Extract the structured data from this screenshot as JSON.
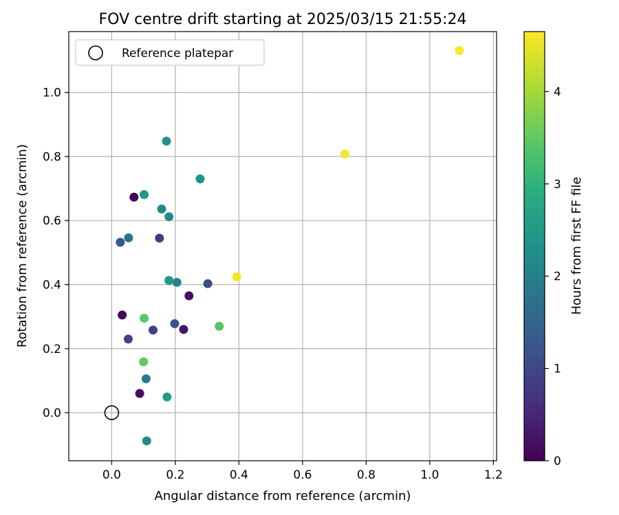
{
  "chart_data": {
    "type": "scatter",
    "title": "FOV centre drift starting at 2025/03/15 21:55:24",
    "xlabel": "Angular distance from reference (arcmin)",
    "ylabel": "Rotation from reference (arcmin)",
    "xlim": [
      -0.135,
      1.21
    ],
    "ylim": [
      -0.15,
      1.19
    ],
    "x_ticks": [
      "0.0",
      "0.2",
      "0.4",
      "0.6",
      "0.8",
      "1.0",
      "1.2"
    ],
    "y_ticks": [
      "0.0",
      "0.2",
      "0.4",
      "0.6",
      "0.8",
      "1.0"
    ],
    "grid": true,
    "legend": {
      "placement": "top-left",
      "entries": [
        "Reference platepar"
      ]
    },
    "reference_point": {
      "x": 0.0,
      "y": 0.0
    },
    "colorbar": {
      "label": "Hours from first FF file",
      "range": [
        0,
        4.65
      ],
      "ticks": [
        "0",
        "1",
        "2",
        "3",
        "4"
      ],
      "colormap": "viridis"
    },
    "points": [
      {
        "x": 0.07,
        "y": 0.673,
        "hours": 0.05
      },
      {
        "x": 0.033,
        "y": 0.305,
        "hours": 0.1
      },
      {
        "x": 0.088,
        "y": 0.06,
        "hours": 0.15
      },
      {
        "x": 0.243,
        "y": 0.365,
        "hours": 0.2
      },
      {
        "x": 0.226,
        "y": 0.26,
        "hours": 0.25
      },
      {
        "x": 0.15,
        "y": 0.545,
        "hours": 0.8
      },
      {
        "x": 0.052,
        "y": 0.23,
        "hours": 0.9
      },
      {
        "x": 0.13,
        "y": 0.258,
        "hours": 0.85
      },
      {
        "x": 0.302,
        "y": 0.403,
        "hours": 1.05
      },
      {
        "x": 0.198,
        "y": 0.278,
        "hours": 1.15
      },
      {
        "x": 0.027,
        "y": 0.532,
        "hours": 1.25
      },
      {
        "x": 0.053,
        "y": 0.546,
        "hours": 1.75
      },
      {
        "x": 0.108,
        "y": 0.106,
        "hours": 1.85
      },
      {
        "x": 0.205,
        "y": 0.407,
        "hours": 2.1
      },
      {
        "x": 0.11,
        "y": -0.088,
        "hours": 2.15
      },
      {
        "x": 0.157,
        "y": 0.636,
        "hours": 2.2
      },
      {
        "x": 0.18,
        "y": 0.612,
        "hours": 2.25
      },
      {
        "x": 0.172,
        "y": 0.848,
        "hours": 2.3
      },
      {
        "x": 0.278,
        "y": 0.73,
        "hours": 2.35
      },
      {
        "x": 0.102,
        "y": 0.681,
        "hours": 2.45
      },
      {
        "x": 0.18,
        "y": 0.413,
        "hours": 2.5
      },
      {
        "x": 0.174,
        "y": 0.049,
        "hours": 2.55
      },
      {
        "x": 0.102,
        "y": 0.295,
        "hours": 3.45
      },
      {
        "x": 0.1,
        "y": 0.159,
        "hours": 3.5
      },
      {
        "x": 0.338,
        "y": 0.27,
        "hours": 3.4
      },
      {
        "x": 0.393,
        "y": 0.424,
        "hours": 4.6
      },
      {
        "x": 0.733,
        "y": 0.808,
        "hours": 4.6
      },
      {
        "x": 1.093,
        "y": 1.131,
        "hours": 4.65
      }
    ]
  }
}
